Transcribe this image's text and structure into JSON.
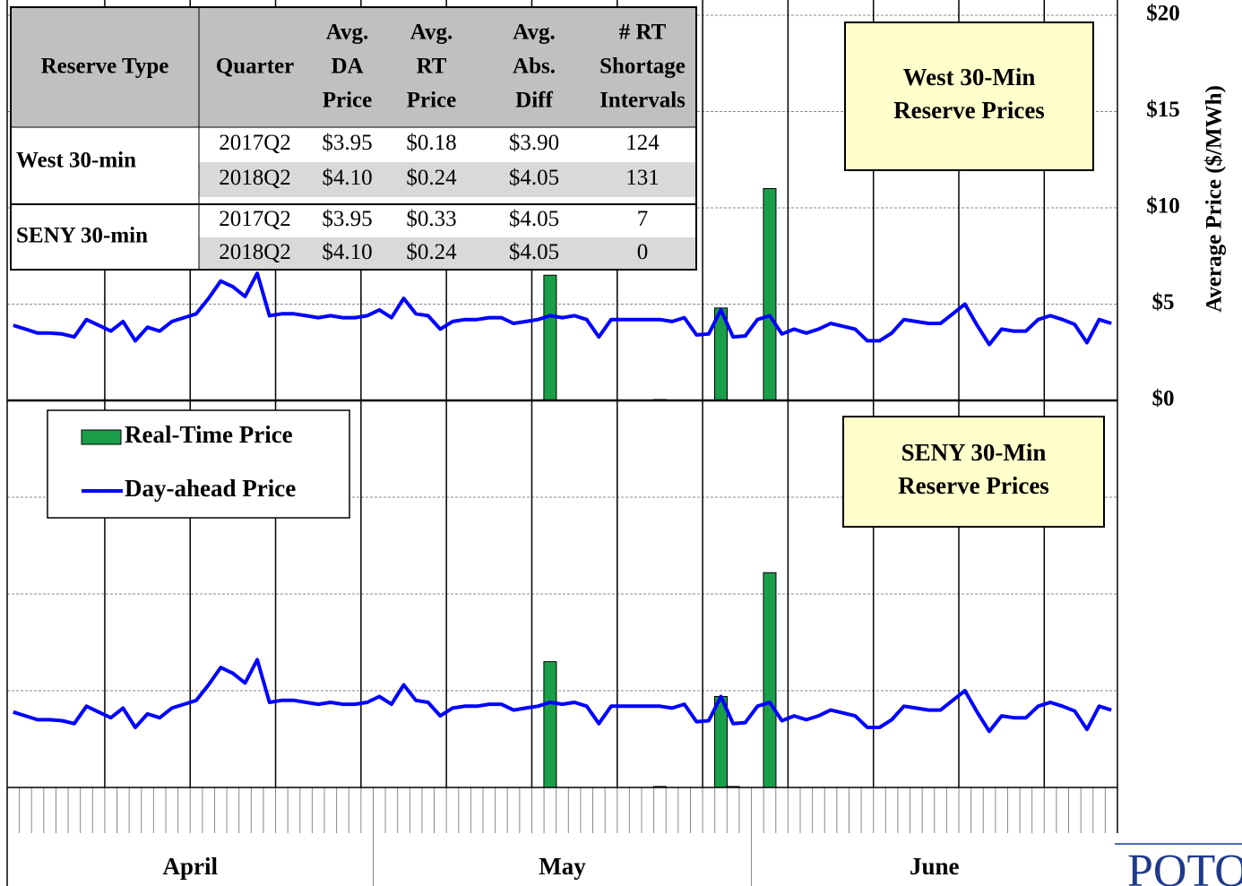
{
  "chart_data": [
    {
      "type": "combo",
      "title": [
        "West 30-Min",
        "Reserve Prices"
      ],
      "categories": [
        null,
        null,
        null,
        null,
        null,
        null,
        null,
        null,
        null,
        null,
        null,
        null,
        null,
        null,
        null,
        null,
        null,
        null,
        null,
        null,
        null,
        null,
        null,
        null,
        null,
        null,
        null,
        null,
        null,
        null,
        null,
        null,
        null,
        null,
        null,
        null,
        null,
        null,
        null,
        null,
        null,
        null,
        null,
        null,
        null,
        null,
        null,
        null,
        null,
        null,
        null,
        null,
        null,
        null,
        null,
        null,
        null,
        null,
        null,
        null,
        null,
        null,
        null,
        null,
        null,
        null,
        null,
        null,
        null,
        null,
        null,
        null,
        null,
        null,
        null,
        null,
        null,
        null,
        null,
        null,
        null,
        null,
        null,
        null,
        null,
        null,
        null,
        null,
        null,
        null,
        null
      ],
      "series": [
        {
          "name": "Real-Time Price",
          "type": "bar",
          "color": "#1a9e4a",
          "values": [
            0,
            0,
            0,
            0,
            0,
            0,
            0,
            0,
            0,
            0,
            0,
            0,
            0,
            0,
            0,
            0,
            0,
            0,
            0,
            0,
            0,
            0,
            0,
            0,
            0,
            0,
            0,
            0,
            0,
            0,
            0,
            0,
            0,
            0,
            0,
            0,
            0,
            0,
            0,
            0,
            0,
            0,
            0,
            0,
            6.5,
            0,
            0,
            0,
            0,
            0,
            0,
            0,
            0,
            0.05,
            0,
            0,
            0,
            0,
            4.8,
            0,
            0,
            0,
            11.0,
            0,
            0,
            0,
            0,
            0,
            0,
            0,
            0,
            0,
            0,
            0,
            0,
            0,
            0,
            0,
            0,
            0,
            0,
            0,
            0,
            0,
            0,
            0,
            0,
            0,
            0,
            0,
            0
          ]
        },
        {
          "name": "Day-ahead Price",
          "type": "line",
          "color": "#0000ff",
          "values": [
            3.9,
            3.7,
            3.5,
            3.5,
            3.45,
            3.3,
            4.2,
            3.9,
            3.6,
            4.1,
            3.1,
            3.8,
            3.6,
            4.1,
            4.3,
            4.5,
            5.3,
            6.2,
            5.9,
            5.4,
            6.6,
            4.4,
            4.5,
            4.5,
            4.4,
            4.3,
            4.4,
            4.3,
            4.3,
            4.4,
            4.7,
            4.3,
            5.3,
            4.5,
            4.4,
            3.7,
            4.1,
            4.2,
            4.2,
            4.3,
            4.3,
            4.0,
            4.1,
            4.2,
            4.4,
            4.3,
            4.4,
            4.2,
            3.3,
            4.2,
            4.2,
            4.2,
            4.2,
            4.2,
            4.1,
            4.3,
            3.4,
            3.45,
            4.7,
            3.3,
            3.35,
            4.2,
            4.4,
            3.45,
            3.7,
            3.5,
            3.7,
            4.0,
            3.85,
            3.7,
            3.1,
            3.1,
            3.5,
            4.2,
            4.1,
            4.0,
            4.0,
            4.5,
            5.0,
            3.9,
            2.9,
            3.7,
            3.6,
            3.6,
            4.2,
            4.4,
            4.2,
            3.95,
            3.0,
            4.2,
            4.0
          ]
        }
      ],
      "ylim": [
        0,
        20
      ],
      "yticks": [
        {
          "value": 0,
          "label": "$0"
        },
        {
          "value": 5,
          "label": "$5"
        },
        {
          "value": 10,
          "label": "$10"
        },
        {
          "value": 15,
          "label": "$15"
        },
        {
          "value": 20,
          "label": "$20"
        }
      ],
      "y_label": "Average Price ($/MWh)",
      "grid": true
    },
    {
      "type": "combo",
      "title": [
        "SENY 30-Min",
        "Reserve Prices"
      ],
      "categories": [
        null,
        null,
        null,
        null,
        null,
        null,
        null,
        null,
        null,
        null,
        null,
        null,
        null,
        null,
        null,
        null,
        null,
        null,
        null,
        null,
        null,
        null,
        null,
        null,
        null,
        null,
        null,
        null,
        null,
        null,
        null,
        null,
        null,
        null,
        null,
        null,
        null,
        null,
        null,
        null,
        null,
        null,
        null,
        null,
        null,
        null,
        null,
        null,
        null,
        null,
        null,
        null,
        null,
        null,
        null,
        null,
        null,
        null,
        null,
        null,
        null,
        null,
        null,
        null,
        null,
        null,
        null,
        null,
        null,
        null,
        null,
        null,
        null,
        null,
        null,
        null,
        null,
        null,
        null,
        null,
        null,
        null,
        null,
        null,
        null,
        null,
        null,
        null,
        null,
        null,
        null
      ],
      "series": [
        {
          "type": "bar",
          "color": "#1a9e4a",
          "values": [
            0,
            0,
            0,
            0,
            0,
            0,
            0,
            0,
            0,
            0,
            0,
            0,
            0,
            0,
            0,
            0,
            0,
            0,
            0,
            0,
            0,
            0,
            0,
            0,
            0,
            0,
            0,
            0,
            0,
            0,
            0,
            0,
            0,
            0,
            0,
            0,
            0,
            0,
            0,
            0,
            0,
            0,
            0,
            0,
            6.5,
            0,
            0,
            0,
            0,
            0,
            0,
            0,
            0,
            0.05,
            0,
            0,
            0,
            0,
            4.7,
            0.05,
            0,
            0,
            11.1,
            0,
            0,
            0,
            0,
            0,
            0,
            0,
            0,
            0,
            0,
            0,
            0,
            0,
            0,
            0,
            0,
            0,
            0,
            0,
            0,
            0,
            0,
            0,
            0,
            0,
            0,
            0,
            0
          ]
        },
        {
          "type": "line",
          "color": "#0000ff",
          "values": [
            3.9,
            3.7,
            3.5,
            3.5,
            3.45,
            3.3,
            4.2,
            3.9,
            3.6,
            4.1,
            3.1,
            3.8,
            3.6,
            4.1,
            4.3,
            4.5,
            5.3,
            6.2,
            5.9,
            5.4,
            6.6,
            4.4,
            4.5,
            4.5,
            4.4,
            4.3,
            4.4,
            4.3,
            4.3,
            4.4,
            4.7,
            4.3,
            5.3,
            4.5,
            4.4,
            3.7,
            4.1,
            4.2,
            4.2,
            4.3,
            4.3,
            4.0,
            4.1,
            4.2,
            4.4,
            4.3,
            4.4,
            4.2,
            3.3,
            4.2,
            4.2,
            4.2,
            4.2,
            4.2,
            4.1,
            4.3,
            3.4,
            3.45,
            4.7,
            3.3,
            3.35,
            4.2,
            4.4,
            3.45,
            3.7,
            3.5,
            3.7,
            4.0,
            3.85,
            3.7,
            3.1,
            3.1,
            3.5,
            4.2,
            4.1,
            4.0,
            4.0,
            4.5,
            5.0,
            3.9,
            2.9,
            3.7,
            3.6,
            3.6,
            4.2,
            4.4,
            4.2,
            3.95,
            3.0,
            4.2,
            4.0
          ]
        }
      ],
      "ylim": [
        0,
        20
      ],
      "yticks": [
        0,
        5,
        10,
        15,
        20
      ],
      "tick_labels": false,
      "grid": true,
      "legend": "upper-left",
      "x_groups": [
        "April",
        "May",
        "June"
      ]
    }
  ],
  "table": {
    "header": [
      [
        "Reserve Type"
      ],
      [
        "Quarter"
      ],
      [
        "Avg.",
        "DA",
        "Price"
      ],
      [
        "Avg.",
        "RT",
        "Price"
      ],
      [
        "Avg.",
        "Abs.",
        "Diff"
      ],
      [
        "# RT",
        "Shortage",
        "Intervals"
      ]
    ],
    "groups": [
      {
        "name": "West 30-min",
        "rows": [
          [
            "2017Q2",
            "$3.95",
            "$0.18",
            "$3.90",
            "124"
          ],
          [
            "2018Q2",
            "$4.10",
            "$0.24",
            "$4.05",
            "131"
          ]
        ]
      },
      {
        "name": "SENY 30-min",
        "rows": [
          [
            "2017Q2",
            "$3.95",
            "$0.33",
            "$4.05",
            "7"
          ],
          [
            "2018Q2",
            "$4.10",
            "$0.24",
            "$4.05",
            "0"
          ]
        ]
      }
    ]
  },
  "logo": "POTOMA"
}
